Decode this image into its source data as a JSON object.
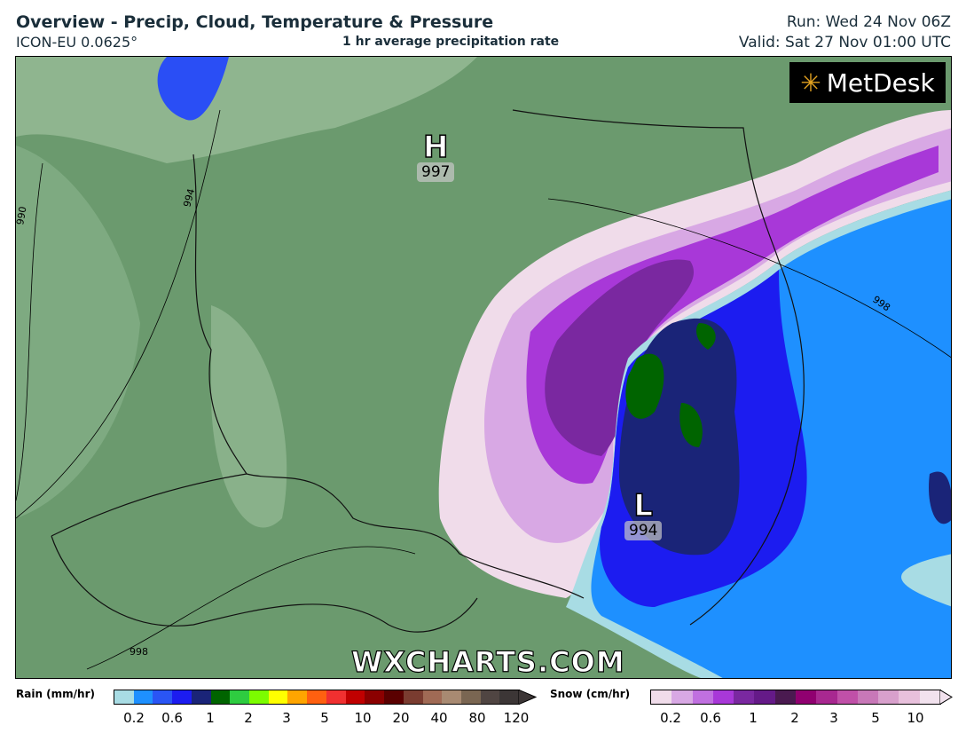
{
  "header": {
    "title": "Overview - Precip, Cloud, Temperature & Pressure",
    "model": "ICON-EU 0.0625°",
    "subtitle": "1 hr average precipitation rate",
    "run": "Run: Wed 24 Nov 06Z",
    "valid": "Valid: Sat 27 Nov 01:00 UTC"
  },
  "map": {
    "logo": "MetDesk",
    "watermark": "WXCHARTS.COM",
    "high": {
      "letter": "H",
      "pressure": "997"
    },
    "low": {
      "letter": "L",
      "pressure": "994"
    },
    "isobar_labels": [
      "990",
      "994",
      "998",
      "998"
    ]
  },
  "legend": {
    "rain": {
      "label": "Rain (mm/hr)",
      "ticks": [
        "0.2",
        "0.6",
        "1",
        "2",
        "3",
        "5",
        "10",
        "20",
        "40",
        "80",
        "120"
      ],
      "colors": [
        "#a8dce4",
        "#1e90ff",
        "#2a55f5",
        "#1c1cf0",
        "#1a2478",
        "#006400",
        "#2ecc40",
        "#7cfc00",
        "#ffff00",
        "#ffa500",
        "#ff6010",
        "#f03030",
        "#c00000",
        "#8b0000",
        "#5a0000",
        "#7a3c30",
        "#a06a55",
        "#a88a72",
        "#7a6652",
        "#504542",
        "#3c3636"
      ]
    },
    "snow": {
      "label": "Snow (cm/hr)",
      "ticks": [
        "0.2",
        "0.6",
        "1",
        "2",
        "3",
        "5",
        "10"
      ],
      "colors": [
        "#f0dcea",
        "#d8a8e4",
        "#c070e0",
        "#a838d8",
        "#7a28a0",
        "#651a88",
        "#4a1a50",
        "#900070",
        "#a82890",
        "#c050a8",
        "#c878b8",
        "#d8a0cc",
        "#e8c0dc",
        "#f2e2ee"
      ]
    }
  }
}
